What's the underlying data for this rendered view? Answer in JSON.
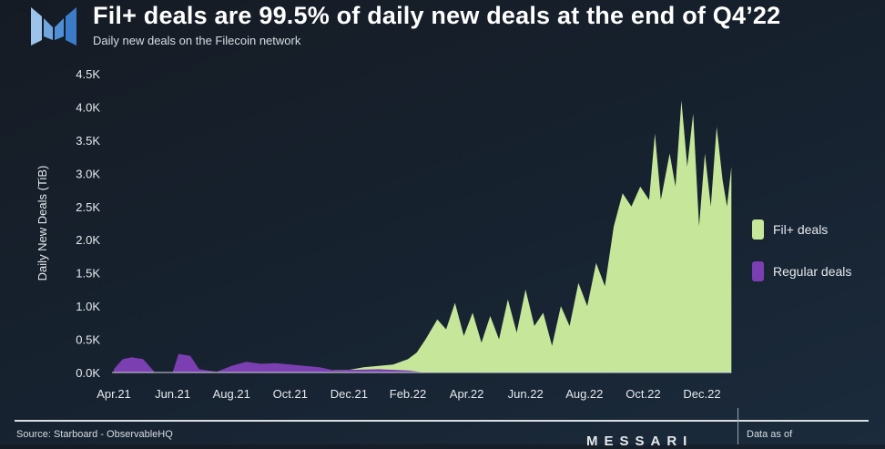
{
  "header": {
    "title": "Fil+ deals are 99.5% of daily new deals at the end of Q4’22",
    "subtitle": "Daily new deals on the Filecoin network"
  },
  "footer": {
    "source": "Source: Starboard - ObservableHQ",
    "brand": "MESSARI",
    "data_as_of": "Data as of"
  },
  "colors": {
    "fil_plus": "#c6e79a",
    "regular": "#7b3fb2"
  },
  "chart_data": {
    "type": "area",
    "title": "Fil+ deals are 99.5% of daily new deals at the end of Q4’22",
    "subtitle": "Daily new deals on the Filecoin network",
    "xlabel": "",
    "ylabel": "Daily New Deals (TiB)",
    "x_unit": "months since Apr 1 2021",
    "xlim": [
      0,
      21
    ],
    "ylim": [
      0,
      4500
    ],
    "x_ticks": [
      {
        "v": 0,
        "label": "Apr.21"
      },
      {
        "v": 2,
        "label": "Jun.21"
      },
      {
        "v": 4,
        "label": "Aug.21"
      },
      {
        "v": 6,
        "label": "Oct.21"
      },
      {
        "v": 8,
        "label": "Dec.21"
      },
      {
        "v": 10,
        "label": "Feb.22"
      },
      {
        "v": 12,
        "label": "Apr.22"
      },
      {
        "v": 14,
        "label": "Jun.22"
      },
      {
        "v": 16,
        "label": "Aug.22"
      },
      {
        "v": 18,
        "label": "Oct.22"
      },
      {
        "v": 20,
        "label": "Dec.22"
      }
    ],
    "y_ticks": [
      {
        "v": 0,
        "label": "0.0K"
      },
      {
        "v": 500,
        "label": "0.5K"
      },
      {
        "v": 1000,
        "label": "1.0K"
      },
      {
        "v": 1500,
        "label": "1.5K"
      },
      {
        "v": 2000,
        "label": "2.0K"
      },
      {
        "v": 2500,
        "label": "2.5K"
      },
      {
        "v": 3000,
        "label": "3.0K"
      },
      {
        "v": 3500,
        "label": "3.5K"
      },
      {
        "v": 4000,
        "label": "4.0K"
      },
      {
        "v": 4500,
        "label": "4.5K"
      }
    ],
    "legend_position": "right",
    "series": [
      {
        "name": "Fil+ deals",
        "color": "#c6e79a",
        "points": [
          [
            0,
            0
          ],
          [
            2,
            0
          ],
          [
            4,
            10
          ],
          [
            6,
            20
          ],
          [
            7,
            30
          ],
          [
            8,
            40
          ],
          [
            8.5,
            80
          ],
          [
            9,
            100
          ],
          [
            9.5,
            120
          ],
          [
            10,
            200
          ],
          [
            10.3,
            300
          ],
          [
            10.6,
            500
          ],
          [
            11,
            800
          ],
          [
            11.3,
            650
          ],
          [
            11.6,
            1050
          ],
          [
            11.9,
            550
          ],
          [
            12.2,
            900
          ],
          [
            12.5,
            450
          ],
          [
            12.8,
            850
          ],
          [
            13.1,
            500
          ],
          [
            13.4,
            1100
          ],
          [
            13.7,
            600
          ],
          [
            14,
            1250
          ],
          [
            14.3,
            700
          ],
          [
            14.6,
            900
          ],
          [
            14.9,
            400
          ],
          [
            15.2,
            1000
          ],
          [
            15.5,
            700
          ],
          [
            15.8,
            1350
          ],
          [
            16.1,
            1000
          ],
          [
            16.4,
            1650
          ],
          [
            16.7,
            1300
          ],
          [
            17,
            2200
          ],
          [
            17.3,
            2700
          ],
          [
            17.6,
            2500
          ],
          [
            17.9,
            2800
          ],
          [
            18.2,
            2600
          ],
          [
            18.4,
            3600
          ],
          [
            18.6,
            2600
          ],
          [
            18.9,
            3300
          ],
          [
            19.1,
            2800
          ],
          [
            19.3,
            4100
          ],
          [
            19.5,
            3100
          ],
          [
            19.7,
            3900
          ],
          [
            19.9,
            2200
          ],
          [
            20.1,
            3300
          ],
          [
            20.3,
            2500
          ],
          [
            20.5,
            3700
          ],
          [
            20.7,
            2900
          ],
          [
            20.85,
            2500
          ],
          [
            21,
            3100
          ]
        ]
      },
      {
        "name": "Regular deals",
        "color": "#7b3fb2",
        "points": [
          [
            0,
            50
          ],
          [
            0.3,
            200
          ],
          [
            0.6,
            230
          ],
          [
            1,
            200
          ],
          [
            1.4,
            0
          ],
          [
            2,
            0
          ],
          [
            2.2,
            280
          ],
          [
            2.6,
            250
          ],
          [
            2.9,
            50
          ],
          [
            3.5,
            10
          ],
          [
            4,
            100
          ],
          [
            4.5,
            160
          ],
          [
            5,
            130
          ],
          [
            5.5,
            140
          ],
          [
            6,
            120
          ],
          [
            6.5,
            100
          ],
          [
            7,
            80
          ],
          [
            7.5,
            30
          ],
          [
            8,
            40
          ],
          [
            9,
            50
          ],
          [
            10,
            30
          ],
          [
            10.5,
            5
          ],
          [
            11,
            0
          ]
        ]
      }
    ]
  }
}
